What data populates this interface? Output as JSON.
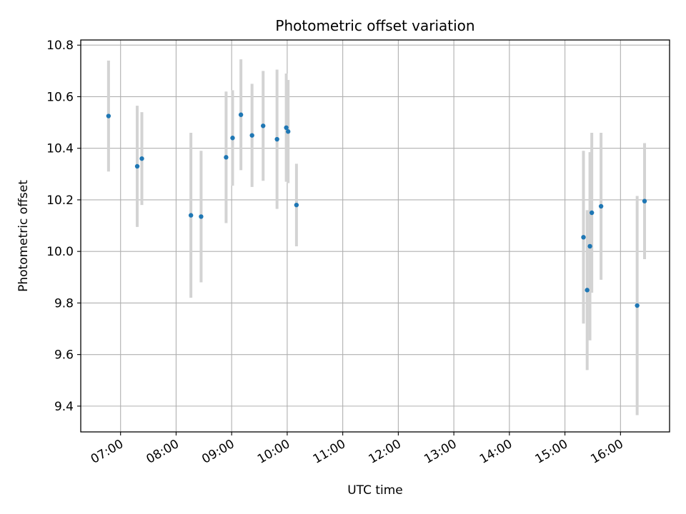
{
  "chart_data": {
    "type": "scatter",
    "title": "Photometric offset variation",
    "xlabel": "UTC time",
    "ylabel": "Photometric offset",
    "grid": true,
    "xlim": [
      "06:17",
      "16:53"
    ],
    "ylim": [
      9.3,
      10.82
    ],
    "x_ticks": [
      "07:00",
      "08:00",
      "09:00",
      "10:00",
      "11:00",
      "12:00",
      "13:00",
      "14:00",
      "15:00",
      "16:00"
    ],
    "y_ticks": [
      9.4,
      9.6,
      9.8,
      10.0,
      10.2,
      10.4,
      10.6,
      10.8
    ],
    "y_tick_labels": [
      "9.4",
      "9.6",
      "9.8",
      "10.0",
      "10.2",
      "10.4",
      "10.6",
      "10.8"
    ],
    "point_color": "#1f77b4",
    "errorbar_color": "#d3d3d3",
    "points": [
      {
        "x": "06:47",
        "y": 10.525,
        "yerr": 0.215
      },
      {
        "x": "07:18",
        "y": 10.33,
        "yerr": 0.235
      },
      {
        "x": "07:23",
        "y": 10.36,
        "yerr": 0.18
      },
      {
        "x": "08:16",
        "y": 10.14,
        "yerr": 0.32
      },
      {
        "x": "08:27",
        "y": 10.135,
        "yerr": 0.255
      },
      {
        "x": "08:54",
        "y": 10.365,
        "yerr": 0.255
      },
      {
        "x": "09:01",
        "y": 10.44,
        "yerr": 0.185
      },
      {
        "x": "09:10",
        "y": 10.53,
        "yerr": 0.215
      },
      {
        "x": "09:22",
        "y": 10.45,
        "yerr": 0.2
      },
      {
        "x": "09:34",
        "y": 10.487,
        "yerr": 0.213
      },
      {
        "x": "09:49",
        "y": 10.435,
        "yerr": 0.27
      },
      {
        "x": "09:59",
        "y": 10.48,
        "yerr": 0.21
      },
      {
        "x": "10:01",
        "y": 10.465,
        "yerr": 0.2
      },
      {
        "x": "10:10",
        "y": 10.18,
        "yerr": 0.16
      },
      {
        "x": "15:20",
        "y": 10.055,
        "yerr": 0.335
      },
      {
        "x": "15:24",
        "y": 9.85,
        "yerr": 0.31
      },
      {
        "x": "15:27",
        "y": 10.02,
        "yerr": 0.365
      },
      {
        "x": "15:29",
        "y": 10.15,
        "yerr": 0.31
      },
      {
        "x": "15:39",
        "y": 10.175,
        "yerr": 0.285
      },
      {
        "x": "16:18",
        "y": 9.79,
        "yerr": 0.425
      },
      {
        "x": "16:26",
        "y": 10.195,
        "yerr": 0.225
      }
    ]
  }
}
